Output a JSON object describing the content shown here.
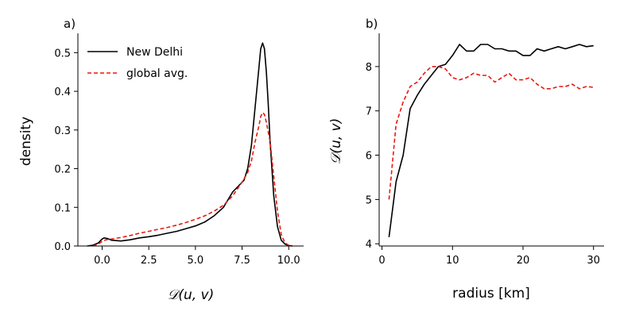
{
  "chart_data": [
    {
      "panel": "a)",
      "type": "line",
      "xlabel": "𝒟(u, v)",
      "ylabel": "density",
      "xlim": [
        -1.3,
        10.8
      ],
      "ylim": [
        0,
        0.55
      ],
      "xticks": [
        "0.0",
        "2.5",
        "5.0",
        "7.5",
        "10.0"
      ],
      "yticks": [
        "0.0",
        "0.1",
        "0.2",
        "0.3",
        "0.4",
        "0.5"
      ],
      "legend_position": "top-left",
      "series": [
        {
          "name": "New Delhi",
          "color": "#000000",
          "style": "solid",
          "x": [
            -0.8,
            -0.5,
            -0.2,
            0.0,
            0.1,
            0.3,
            0.5,
            1.0,
            1.5,
            2.0,
            2.5,
            3.0,
            3.5,
            4.0,
            4.5,
            5.0,
            5.5,
            6.0,
            6.5,
            7.0,
            7.3,
            7.6,
            7.8,
            8.0,
            8.2,
            8.4,
            8.5,
            8.6,
            8.7,
            8.8,
            8.9,
            9.0,
            9.2,
            9.4,
            9.6,
            9.8,
            10.0,
            10.2
          ],
          "y": [
            0.0,
            0.002,
            0.008,
            0.018,
            0.021,
            0.019,
            0.015,
            0.013,
            0.016,
            0.021,
            0.024,
            0.028,
            0.033,
            0.038,
            0.045,
            0.052,
            0.062,
            0.078,
            0.1,
            0.14,
            0.155,
            0.17,
            0.2,
            0.26,
            0.36,
            0.46,
            0.51,
            0.525,
            0.51,
            0.45,
            0.37,
            0.27,
            0.13,
            0.05,
            0.015,
            0.005,
            0.001,
            0.0
          ]
        },
        {
          "name": "global avg.",
          "color": "#e8190f",
          "style": "dashed",
          "x": [
            -0.5,
            -0.2,
            0.0,
            0.2,
            0.5,
            1.0,
            1.5,
            2.0,
            2.5,
            3.0,
            3.5,
            4.0,
            4.5,
            5.0,
            5.5,
            6.0,
            6.5,
            7.0,
            7.5,
            7.8,
            8.0,
            8.2,
            8.4,
            8.5,
            8.6,
            8.7,
            8.8,
            9.0,
            9.2,
            9.4,
            9.6,
            9.8,
            10.0,
            10.2
          ],
          "y": [
            0.0,
            0.005,
            0.012,
            0.016,
            0.018,
            0.022,
            0.027,
            0.033,
            0.038,
            0.043,
            0.048,
            0.054,
            0.061,
            0.069,
            0.078,
            0.09,
            0.105,
            0.13,
            0.165,
            0.19,
            0.22,
            0.27,
            0.31,
            0.335,
            0.345,
            0.34,
            0.32,
            0.27,
            0.18,
            0.09,
            0.03,
            0.008,
            0.002,
            0.0
          ]
        }
      ]
    },
    {
      "panel": "b)",
      "type": "line",
      "xlabel": "radius [km]",
      "ylabel": "𝒟(u, v)",
      "xlim": [
        -0.4,
        31.5
      ],
      "ylim": [
        3.95,
        8.75
      ],
      "xticks": [
        "0",
        "10",
        "20",
        "30"
      ],
      "yticks": [
        "4",
        "5",
        "6",
        "7",
        "8"
      ],
      "series": [
        {
          "name": "",
          "color": "#000000",
          "style": "solid",
          "x": [
            1,
            2,
            3,
            4,
            5,
            6,
            7,
            8,
            9,
            10,
            11,
            12,
            13,
            14,
            15,
            16,
            17,
            18,
            19,
            20,
            21,
            22,
            23,
            24,
            25,
            26,
            27,
            28,
            29,
            30
          ],
          "y": [
            4.15,
            5.4,
            6.0,
            7.05,
            7.35,
            7.6,
            7.8,
            8.0,
            8.05,
            8.25,
            8.5,
            8.35,
            8.35,
            8.5,
            8.5,
            8.4,
            8.4,
            8.35,
            8.35,
            8.25,
            8.25,
            8.4,
            8.35,
            8.4,
            8.45,
            8.4,
            8.45,
            8.5,
            8.45,
            8.47
          ]
        },
        {
          "name": "",
          "color": "#e8190f",
          "style": "dashed",
          "x": [
            1,
            2,
            3,
            4,
            5,
            6,
            7,
            8,
            9,
            10,
            11,
            12,
            13,
            14,
            15,
            16,
            17,
            18,
            19,
            20,
            21,
            22,
            23,
            24,
            25,
            26,
            27,
            28,
            29,
            30
          ],
          "y": [
            5.0,
            6.7,
            7.2,
            7.55,
            7.65,
            7.85,
            8.0,
            8.0,
            7.95,
            7.75,
            7.7,
            7.75,
            7.85,
            7.8,
            7.8,
            7.65,
            7.75,
            7.85,
            7.7,
            7.7,
            7.75,
            7.6,
            7.5,
            7.5,
            7.55,
            7.55,
            7.6,
            7.5,
            7.55,
            7.53
          ]
        }
      ]
    }
  ]
}
